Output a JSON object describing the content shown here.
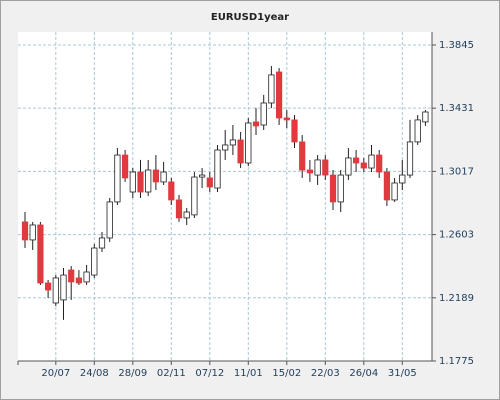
{
  "chart_data": {
    "type": "candlestick",
    "title": "EURUSD1year",
    "categories": [
      null,
      null,
      null,
      null,
      "20/07",
      null,
      null,
      null,
      null,
      "24/08",
      null,
      null,
      null,
      null,
      "28/09",
      null,
      null,
      null,
      null,
      "02/11",
      null,
      null,
      null,
      null,
      "07/12",
      null,
      null,
      null,
      null,
      "11/01",
      null,
      null,
      null,
      null,
      "15/02",
      null,
      null,
      null,
      null,
      "22/03",
      null,
      null,
      null,
      null,
      "26/04",
      null,
      null,
      null,
      null,
      "31/05",
      null,
      null,
      null
    ],
    "open": [
      1.2686,
      1.2568,
      1.2666,
      1.2286,
      1.2155,
      1.2175,
      1.2371,
      1.2319,
      1.2293,
      1.2338,
      1.2515,
      1.2581,
      1.2817,
      1.3124,
      1.2882,
      1.3013,
      1.2882,
      1.3026,
      1.2948,
      1.2948,
      1.283,
      1.2712,
      1.2732,
      1.298,
      1.2974,
      1.2908,
      1.3157,
      1.319,
      1.3223,
      1.3072,
      1.3341,
      1.3321,
      1.3465,
      1.3668,
      1.3367,
      1.3354,
      1.321,
      1.3026,
      1.2993,
      1.3092,
      1.2993,
      1.2817,
      1.2993,
      1.3105,
      1.3072,
      1.3039,
      1.3124,
      1.3013,
      1.283,
      1.2941,
      1.2993,
      1.321,
      1.3341
    ],
    "high": [
      1.2751,
      1.2686,
      1.2686,
      1.2306,
      1.2338,
      1.2384,
      1.2397,
      1.2371,
      1.2404,
      1.2542,
      1.262,
      1.2843,
      1.317,
      1.3157,
      1.3039,
      1.3092,
      1.3092,
      1.3124,
      1.3079,
      1.2974,
      1.2863,
      1.2777,
      1.3013,
      1.3039,
      1.3013,
      1.319,
      1.3288,
      1.3321,
      1.3275,
      1.3367,
      1.3432,
      1.3518,
      1.3707,
      1.3694,
      1.3419,
      1.3386,
      1.3255,
      1.3092,
      1.3124,
      1.3124,
      1.3026,
      1.3026,
      1.317,
      1.3157,
      1.3105,
      1.319,
      1.3157,
      1.3039,
      1.2974,
      1.3092,
      1.3354,
      1.3386,
      1.3419
    ],
    "low": [
      1.2515,
      1.2502,
      1.2273,
      1.2188,
      1.2135,
      1.2044,
      1.2175,
      1.2273,
      1.2273,
      1.2319,
      1.2489,
      1.2555,
      1.2797,
      1.2948,
      1.2843,
      1.2843,
      1.2856,
      1.2895,
      1.2928,
      1.2797,
      1.2686,
      1.2666,
      1.2712,
      1.2908,
      1.2882,
      1.2882,
      1.3092,
      1.3124,
      1.3039,
      1.3052,
      1.3255,
      1.3288,
      1.3432,
      1.3321,
      1.3301,
      1.317,
      1.2974,
      1.2948,
      1.2928,
      1.2961,
      1.2764,
      1.2751,
      1.2961,
      1.3013,
      1.3013,
      1.3013,
      1.2974,
      1.279,
      1.2817,
      1.2895,
      1.2974,
      1.319,
      1.3315
    ],
    "close": [
      1.2568,
      1.2666,
      1.2286,
      1.224,
      1.2319,
      1.2338,
      1.2293,
      1.2286,
      1.2358,
      1.2515,
      1.2581,
      1.2817,
      1.3124,
      1.2974,
      1.3013,
      1.2882,
      1.3026,
      1.2948,
      1.3013,
      1.283,
      1.2712,
      1.2751,
      1.298,
      1.2993,
      1.2915,
      1.3157,
      1.319,
      1.3223,
      1.3072,
      1.3334,
      1.3315,
      1.3465,
      1.3649,
      1.3367,
      1.3354,
      1.321,
      1.3026,
      1.3007,
      1.3092,
      1.2993,
      1.2817,
      1.2993,
      1.3105,
      1.3072,
      1.3039,
      1.3124,
      1.3013,
      1.283,
      1.2941,
      1.2993,
      1.321,
      1.3354,
      1.3406
    ],
    "ylim": [
      1.1775,
      1.393
    ],
    "yticks": [
      1.1775,
      1.2189,
      1.2603,
      1.3017,
      1.3431,
      1.3845
    ],
    "grid": true,
    "up_color": "#ffffff",
    "down_color": "#e0393e"
  }
}
